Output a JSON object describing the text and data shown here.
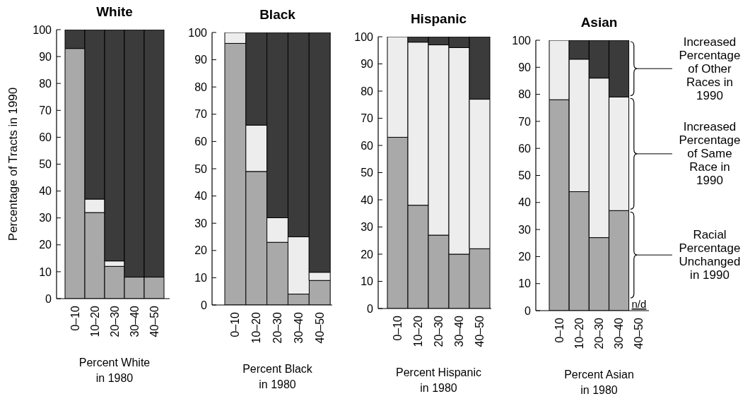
{
  "chart_data": [
    {
      "type": "bar",
      "title": "White",
      "ylabel": "Percentage of Tracts in 1990",
      "xlabel": "Percent White\nin 1980",
      "categories": [
        "0–10",
        "10–20",
        "20–30",
        "30–40",
        "40–50"
      ],
      "stacked": true,
      "series": [
        {
          "color": "#a9a9a9",
          "values": [
            93,
            32,
            12,
            8,
            8
          ]
        },
        {
          "color": "#ededed",
          "values": [
            0,
            5,
            2,
            0,
            0
          ]
        },
        {
          "color": "#3b3b3b",
          "values": [
            7,
            63,
            86,
            92,
            92
          ]
        }
      ],
      "ylim": [
        0,
        100
      ],
      "yticks": [
        0,
        10,
        20,
        30,
        40,
        50,
        60,
        70,
        80,
        90,
        100
      ]
    },
    {
      "type": "bar",
      "title": "Black",
      "xlabel": "Percent Black\nin 1980",
      "categories": [
        "0–10",
        "10–20",
        "20–30",
        "30–40",
        "40–50"
      ],
      "stacked": true,
      "series": [
        {
          "color": "#a9a9a9",
          "values": [
            96,
            49,
            23,
            4,
            9
          ]
        },
        {
          "color": "#ededed",
          "values": [
            4,
            17,
            9,
            21,
            3
          ]
        },
        {
          "color": "#3b3b3b",
          "values": [
            0,
            34,
            68,
            75,
            88
          ]
        }
      ],
      "ylim": [
        0,
        100
      ],
      "yticks": [
        0,
        10,
        20,
        30,
        40,
        50,
        60,
        70,
        80,
        90,
        100
      ]
    },
    {
      "type": "bar",
      "title": "Hispanic",
      "xlabel": "Percent Hispanic\nin 1980",
      "categories": [
        "0–10",
        "10–20",
        "20–30",
        "30–40",
        "40–50"
      ],
      "stacked": true,
      "series": [
        {
          "color": "#a9a9a9",
          "values": [
            63,
            38,
            27,
            20,
            22
          ]
        },
        {
          "color": "#ededed",
          "values": [
            37,
            60,
            70,
            76,
            55
          ]
        },
        {
          "color": "#3b3b3b",
          "values": [
            0,
            2,
            3,
            4,
            23
          ]
        }
      ],
      "ylim": [
        0,
        100
      ],
      "yticks": [
        0,
        10,
        20,
        30,
        40,
        50,
        60,
        70,
        80,
        90,
        100
      ]
    },
    {
      "type": "bar",
      "title": "Asian",
      "xlabel": "Percent Asian\nin 1980",
      "categories": [
        "0–10",
        "10–20",
        "20–30",
        "30–40",
        "40–50"
      ],
      "stacked": true,
      "legend": "right",
      "series": [
        {
          "name": "Racial\nPercentage\nUnchanged\nin 1990",
          "color": "#a9a9a9",
          "values": [
            78,
            44,
            27,
            37,
            null
          ]
        },
        {
          "name": "Increased\nPercentage\nof Same\nRace in\n1990",
          "color": "#ededed",
          "values": [
            22,
            49,
            59,
            42,
            null
          ]
        },
        {
          "name": "Increased\nPercentage\nof Other\nRaces in\n1990",
          "color": "#3b3b3b",
          "values": [
            0,
            7,
            14,
            21,
            null
          ]
        }
      ],
      "ylim": [
        0,
        100
      ],
      "yticks": [
        0,
        10,
        20,
        30,
        40,
        50,
        60,
        70,
        80,
        90,
        100
      ],
      "annotations": [
        "n/d"
      ]
    }
  ]
}
